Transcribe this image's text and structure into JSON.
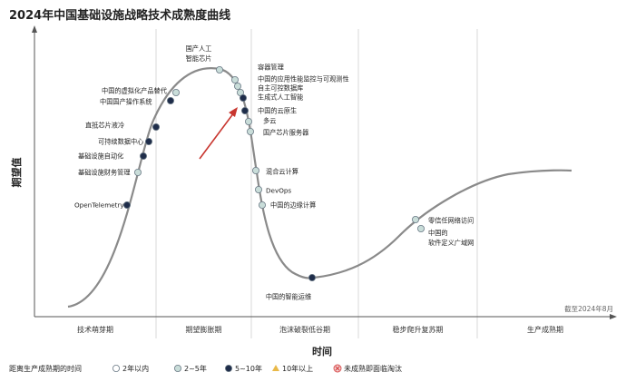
{
  "chart_data": {
    "type": "hype-cycle",
    "title": "2024年中国基础设施战略技术成熟度曲线",
    "ylabel": "期望值",
    "xlabel": "时间",
    "note": "截至2024年8月",
    "phases": [
      "技术萌芽期",
      "期望膨胀期",
      "泡沫破裂低谷期",
      "稳步爬升复苏期",
      "生产成熟期"
    ],
    "legend": {
      "title": "距离生产成熟期的时间",
      "items": [
        {
          "label": "2年以内",
          "color": "#ffffff",
          "shape": "circle"
        },
        {
          "label": "2~5年",
          "color": "#c9ddd9",
          "shape": "circle"
        },
        {
          "label": "5~10年",
          "color": "#1f2d4a",
          "shape": "circle"
        },
        {
          "label": "10年以上",
          "color": "#e9b949",
          "shape": "triangle"
        },
        {
          "label": "未成熟即面临淘汰",
          "color": "#d94a4a",
          "shape": "cross"
        }
      ]
    },
    "technologies": [
      {
        "name": "OpenTelemetry",
        "category": "5~10年"
      },
      {
        "name": "基础设施财务管理",
        "category": "2~5年"
      },
      {
        "name": "基础设施自动化",
        "category": "5~10年"
      },
      {
        "name": "可持续数据中心",
        "category": "5~10年"
      },
      {
        "name": "直抵芯片液冷",
        "category": "5~10年"
      },
      {
        "name": "中国国产操作系统",
        "category": "5~10年"
      },
      {
        "name": "中国的虚拟化产品替代",
        "category": "2~5年"
      },
      {
        "name": "国产人工智能芯片",
        "category": "2~5年"
      },
      {
        "name": "容器管理",
        "category": "2~5年"
      },
      {
        "name": "中国的应用性能监控与可观测性",
        "category": "2~5年"
      },
      {
        "name": "自主可控数据库",
        "category": "2~5年"
      },
      {
        "name": "生成式人工智能",
        "category": "5~10年"
      },
      {
        "name": "中国的云原生",
        "category": "5~10年"
      },
      {
        "name": "多云",
        "category": "2~5年"
      },
      {
        "name": "国产芯片服务器",
        "category": "2~5年"
      },
      {
        "name": "混合云计算",
        "category": "2~5年"
      },
      {
        "name": "DevOps",
        "category": "2~5年"
      },
      {
        "name": "中国的边缘计算",
        "category": "2~5年"
      },
      {
        "name": "中国的智能运维",
        "category": "5~10年"
      },
      {
        "name": "零信任网络访问",
        "category": "2~5年"
      },
      {
        "name": "中国的软件定义广域网",
        "category": "2~5年"
      }
    ]
  }
}
